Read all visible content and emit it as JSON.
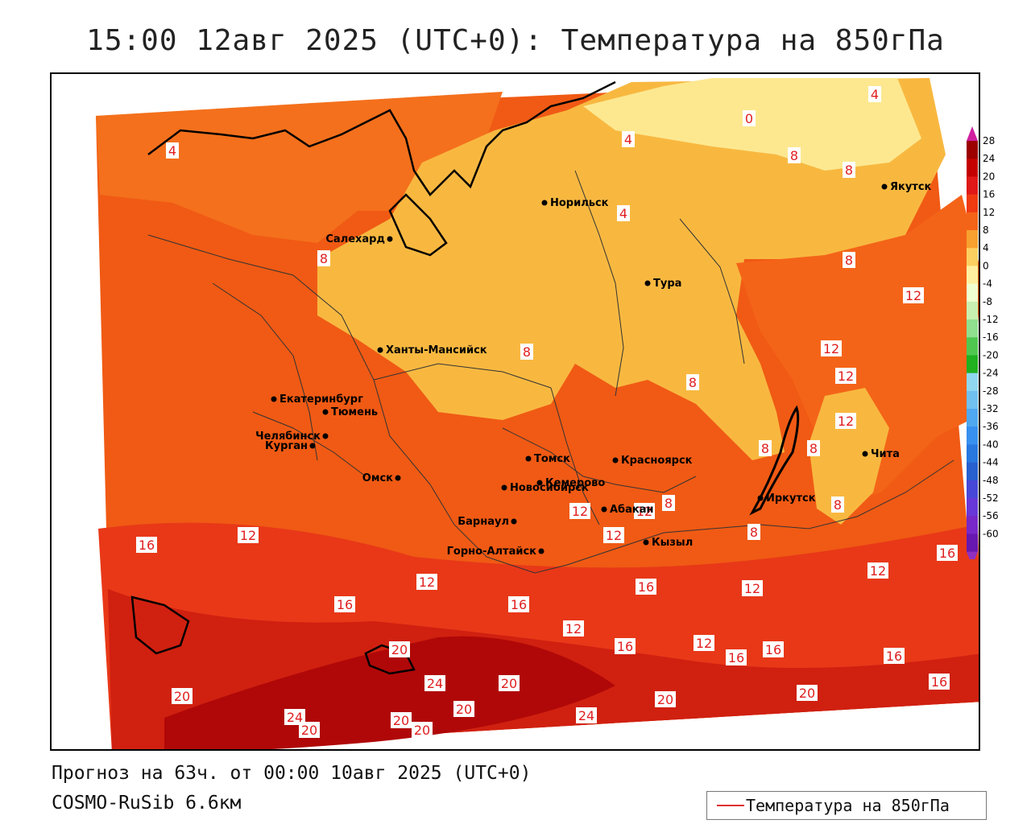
{
  "title": "15:00 12авг 2025 (UTC+0): Температура на 850гПа",
  "forecast_line": "Прогноз на 63ч. от 00:00 10авг 2025 (UTC+0)",
  "model_line": "COSMO-RuSib 6.6км",
  "legend": {
    "label": "Температура на 850гПа",
    "line_color": "#e03030"
  },
  "colorbar": {
    "ticks": [
      "28",
      "24",
      "20",
      "16",
      "12",
      "8",
      "4",
      "0",
      "-4",
      "-8",
      "-12",
      "-16",
      "-20",
      "-24",
      "-28",
      "-32",
      "-36",
      "-40",
      "-44",
      "-48",
      "-52",
      "-56",
      "-60"
    ],
    "colors": [
      "#9c0000",
      "#c40000",
      "#e01818",
      "#f03a10",
      "#f46418",
      "#f8a030",
      "#fcd060",
      "#fff0a0",
      "#f0ffd0",
      "#c8f0b0",
      "#90e090",
      "#50c850",
      "#20b020",
      "#90d8f0",
      "#70c0f0",
      "#50a8f0",
      "#3890f0",
      "#2878e0",
      "#2860d0",
      "#4848d8",
      "#6838d8",
      "#7828c8",
      "#6818b0"
    ],
    "top_arrow_color": "#d020a0",
    "bottom_arrow_color": "#9030c0"
  },
  "cities": [
    {
      "name": "Якутск"
    },
    {
      "name": "Норильск"
    },
    {
      "name": "Салехард"
    },
    {
      "name": "Тура"
    },
    {
      "name": "Ханты-Мансийск"
    },
    {
      "name": "Екатеринбург"
    },
    {
      "name": "Тюмень"
    },
    {
      "name": "Челябинск"
    },
    {
      "name": "Курган"
    },
    {
      "name": "Омск"
    },
    {
      "name": "Новосибирск"
    },
    {
      "name": "Томск"
    },
    {
      "name": "Кемерово"
    },
    {
      "name": "Красноярск"
    },
    {
      "name": "Абакан"
    },
    {
      "name": "Барнаул"
    },
    {
      "name": "Горно-Алтайск"
    },
    {
      "name": "Кызыл"
    },
    {
      "name": "Иркутск"
    },
    {
      "name": "Чита"
    }
  ],
  "isotherm_labels": [
    "4",
    "0",
    "4",
    "8",
    "4",
    "8",
    "8",
    "8",
    "8",
    "8",
    "4",
    "12",
    "12",
    "12",
    "12",
    "8",
    "8",
    "8",
    "8",
    "8",
    "12",
    "12",
    "12",
    "16",
    "16",
    "12",
    "16",
    "12",
    "12",
    "12",
    "16",
    "16",
    "12",
    "16",
    "20",
    "12",
    "16",
    "16",
    "16",
    "20",
    "20",
    "24",
    "20",
    "20",
    "20",
    "24",
    "20",
    "20",
    "24",
    "16",
    "20"
  ]
}
